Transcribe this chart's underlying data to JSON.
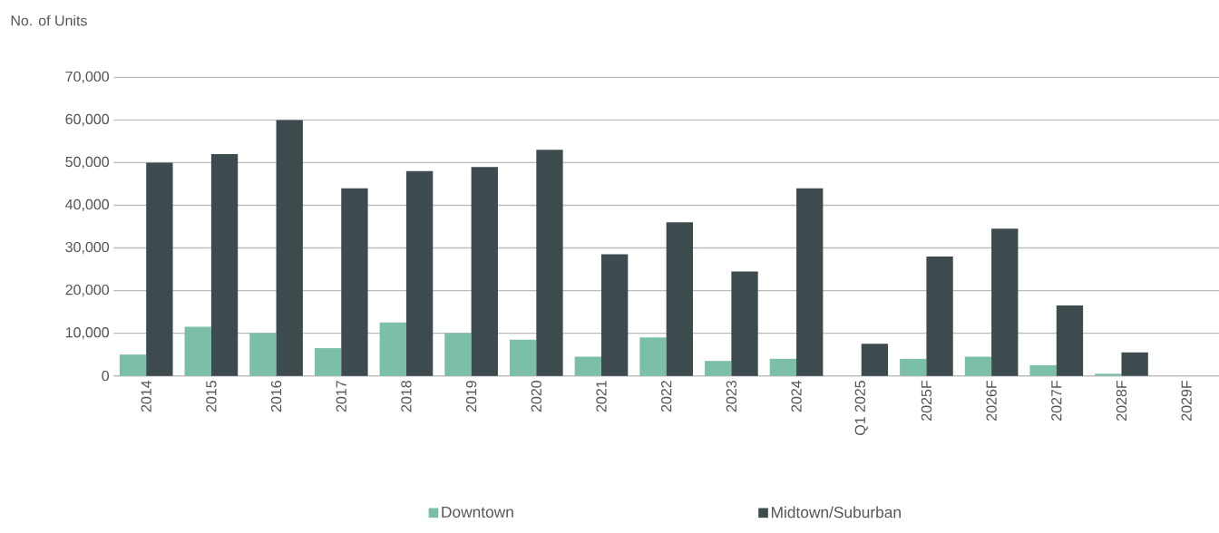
{
  "chart_data": {
    "type": "bar",
    "ylabel": "No. of Units",
    "categories": [
      "2014",
      "2015",
      "2016",
      "2017",
      "2018",
      "2019",
      "2020",
      "2021",
      "2022",
      "2023",
      "2024",
      "Q1 2025",
      "2025F",
      "2026F",
      "2027F",
      "2028F",
      "2029F"
    ],
    "series": [
      {
        "name": "Downtown",
        "color": "#7bbfa8",
        "values": [
          5000,
          11500,
          10000,
          6500,
          12500,
          10000,
          8500,
          4500,
          9000,
          3500,
          4000,
          0,
          4000,
          4500,
          2500,
          500,
          0
        ]
      },
      {
        "name": "Midtown/Suburban",
        "color": "#3d4b4f",
        "values": [
          50000,
          52000,
          60000,
          44000,
          48000,
          49000,
          53000,
          28500,
          36000,
          24500,
          44000,
          7500,
          28000,
          34500,
          16500,
          5500,
          0
        ]
      }
    ],
    "ylim": [
      0,
      70000
    ],
    "yticks": [
      {
        "value": 0,
        "label": "0"
      },
      {
        "value": 10000,
        "label": "10,000"
      },
      {
        "value": 20000,
        "label": "20,000"
      },
      {
        "value": 30000,
        "label": "30,000"
      },
      {
        "value": 40000,
        "label": "40,000"
      },
      {
        "value": 50000,
        "label": "50,000"
      },
      {
        "value": 60000,
        "label": "60,000"
      },
      {
        "value": 70000,
        "label": "70,000"
      }
    ],
    "grid": "y",
    "legend": "bottom"
  }
}
